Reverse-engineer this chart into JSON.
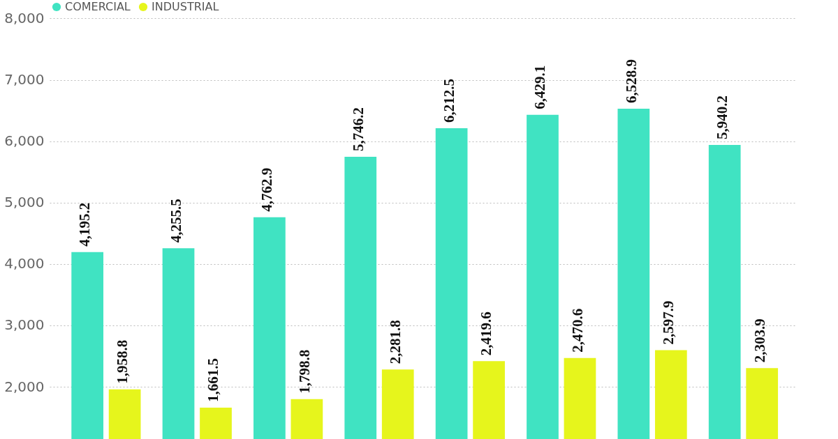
{
  "chart_data": {
    "type": "bar",
    "categories": [
      null,
      null,
      null,
      null,
      null,
      null,
      null,
      null
    ],
    "series": [
      {
        "name": "COMERCIAL",
        "color": "#40e3c2",
        "values": [
          4195.2,
          4255.5,
          4762.9,
          5746.2,
          6212.5,
          6429.1,
          6528.9,
          5940.2
        ],
        "value_labels": [
          "4,195.2",
          "4,255.5",
          "4,762.9",
          "5,746.2",
          "6,212.5",
          "6,429.1",
          "6,528.9",
          "5,940.2"
        ]
      },
      {
        "name": "INDUSTRIAL",
        "color": "#e6f51c",
        "values": [
          1958.8,
          1661.5,
          1798.8,
          2281.8,
          2419.6,
          2470.6,
          2597.9,
          2303.9
        ],
        "value_labels": [
          "1,958.8",
          "1,661.5",
          "1,798.8",
          "2,281.8",
          "2,419.6",
          "2,470.6",
          "2,597.9",
          "2,303.9"
        ]
      }
    ],
    "ylim": [
      1150,
      8300
    ],
    "yticks": [
      {
        "value": 2000,
        "label": "2,000"
      },
      {
        "value": 3000,
        "label": "3,000"
      },
      {
        "value": 4000,
        "label": "4,000"
      },
      {
        "value": 5000,
        "label": "5,000"
      },
      {
        "value": 6000,
        "label": "6,000"
      },
      {
        "value": 7000,
        "label": "7,000"
      },
      {
        "value": 8000,
        "label": "8,000"
      }
    ],
    "grid": "y",
    "legend": "top left",
    "tick_labels": "y"
  }
}
